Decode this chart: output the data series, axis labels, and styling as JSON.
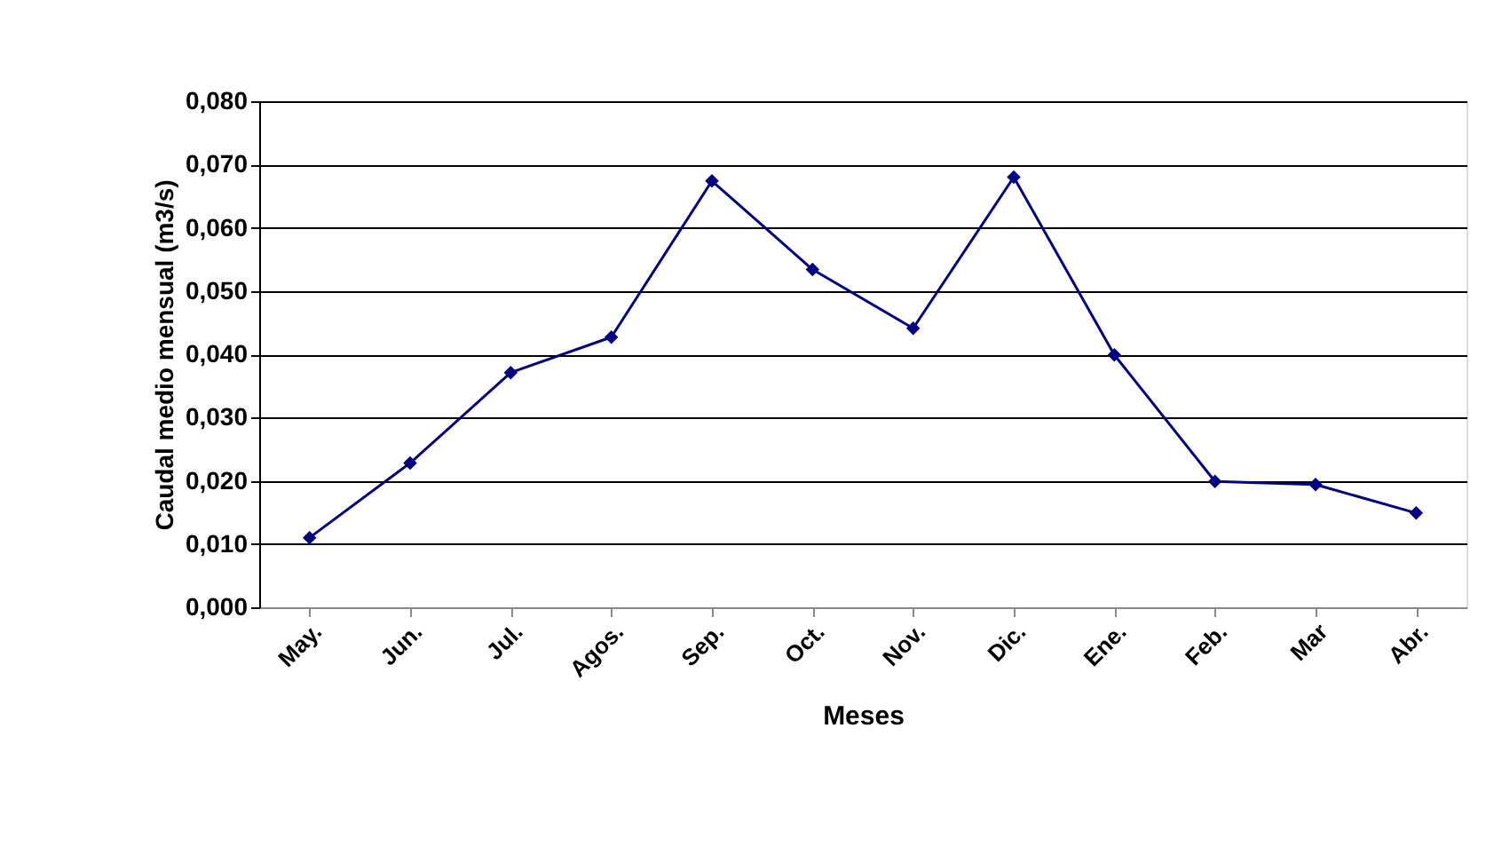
{
  "chart_data": {
    "type": "line",
    "xlabel": "Meses",
    "ylabel": "Caudal medio mensual (m3/s)",
    "categories": [
      "May.",
      "Jun.",
      "Jul.",
      "Agos.",
      "Sep.",
      "Oct.",
      "Nov.",
      "Dic.",
      "Ene.",
      "Feb.",
      "Mar",
      "Abr."
    ],
    "series": [
      {
        "color": "#000080",
        "values": [
          0.011,
          0.0228,
          0.0371,
          0.0427,
          0.0674,
          0.0534,
          0.0441,
          0.068,
          0.0399,
          0.0199,
          0.0194,
          0.0149
        ]
      }
    ],
    "ylim": [
      0,
      0.08
    ],
    "yticks": [
      {
        "value": 0,
        "label": "0,000"
      },
      {
        "value": 0.01,
        "label": "0,010"
      },
      {
        "value": 0.02,
        "label": "0,020"
      },
      {
        "value": 0.03,
        "label": "0,030"
      },
      {
        "value": 0.04,
        "label": "0,040"
      },
      {
        "value": 0.05,
        "label": "0,050"
      },
      {
        "value": 0.06,
        "label": "0,060"
      },
      {
        "value": 0.07,
        "label": "0,070"
      },
      {
        "value": 0.08,
        "label": "0,080"
      }
    ],
    "grid": "y",
    "marker": "diamond",
    "line_style": "solid",
    "legend": false
  }
}
